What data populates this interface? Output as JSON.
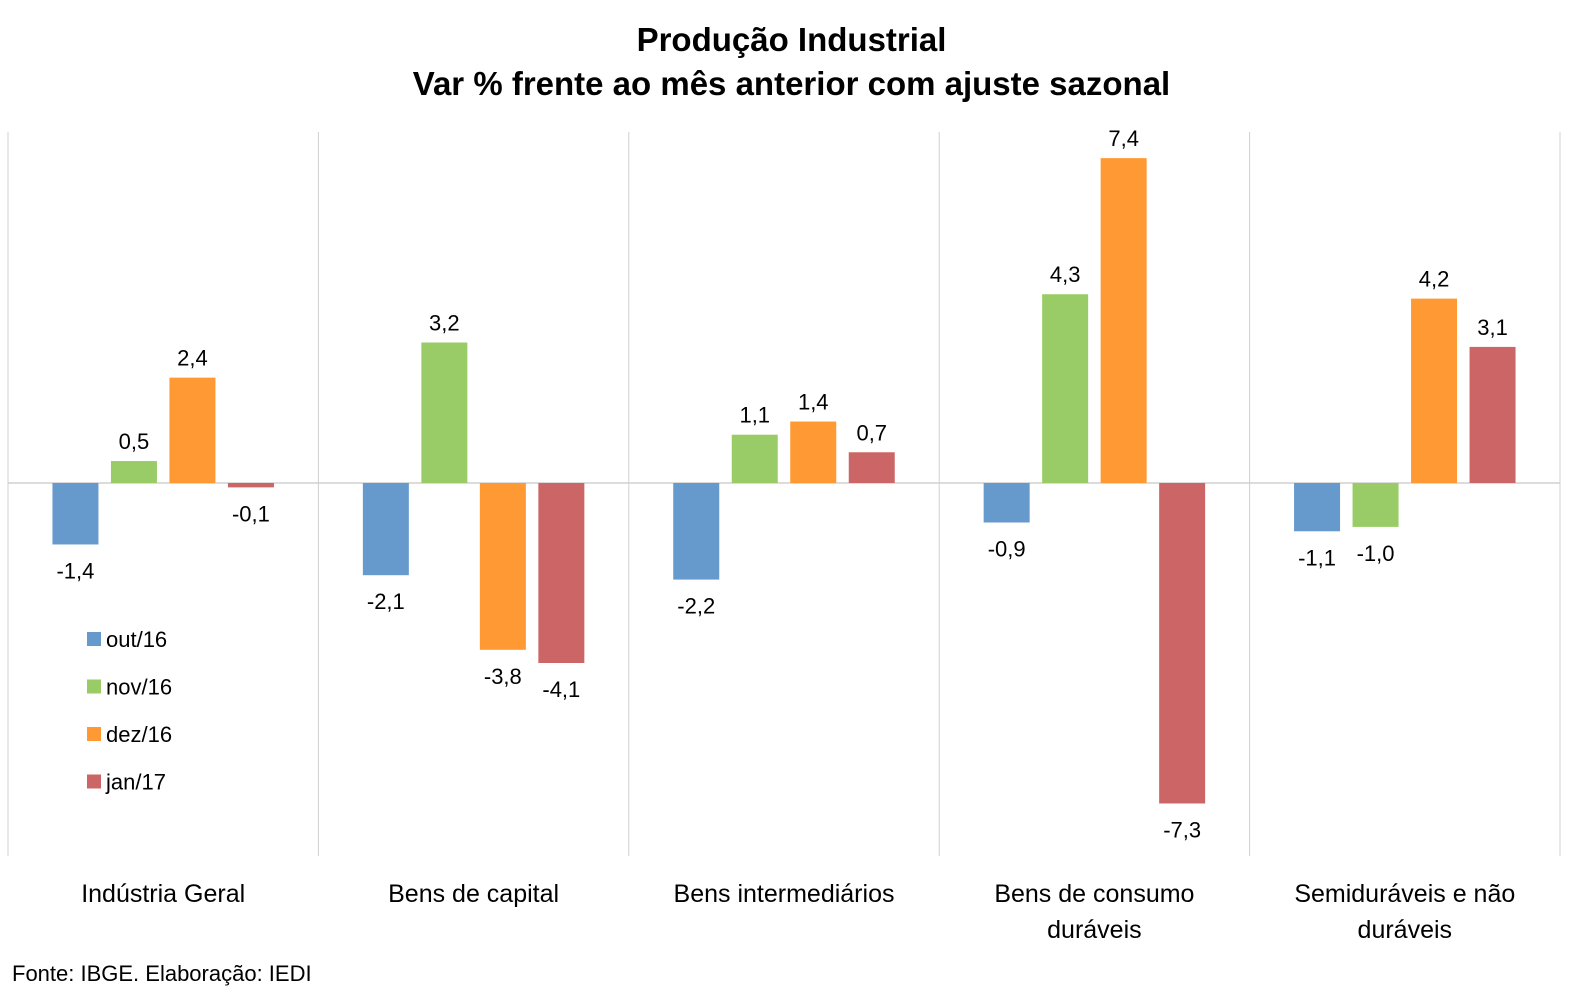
{
  "chart_data": {
    "type": "bar",
    "title": "Produção Industrial",
    "subtitle": "Var % frente ao mês anterior com ajuste sazonal",
    "categories": [
      [
        "Indústria Geral"
      ],
      [
        "Bens de capital"
      ],
      [
        "Bens intermediários"
      ],
      [
        "Bens de consumo",
        "duráveis"
      ],
      [
        "Semiduráveis e não",
        "duráveis"
      ]
    ],
    "series": [
      {
        "name": "out/16",
        "color": "#6699cc",
        "values": [
          -1.4,
          -2.1,
          -2.2,
          -0.9,
          -1.1
        ],
        "labels": [
          "-1,4",
          "-2,1",
          "-2,2",
          "-0,9",
          "-1,1"
        ]
      },
      {
        "name": "nov/16",
        "color": "#99cc66",
        "values": [
          0.5,
          3.2,
          1.1,
          4.3,
          -1.0
        ],
        "labels": [
          "0,5",
          "3,2",
          "1,1",
          "4,3",
          "-1,0"
        ]
      },
      {
        "name": "dez/16",
        "color": "#ff9933",
        "values": [
          2.4,
          -3.8,
          1.4,
          7.4,
          4.2
        ],
        "labels": [
          "2,4",
          "-3,8",
          "1,4",
          "7,4",
          "4,2"
        ]
      },
      {
        "name": "jan/17",
        "color": "#cc6666",
        "values": [
          -0.1,
          -4.1,
          0.7,
          -7.3,
          3.1
        ],
        "labels": [
          "-0,1",
          "-4,1",
          "0,7",
          "-7,3",
          "3,1"
        ]
      }
    ],
    "ylim": [
      -8.5,
      8.0
    ],
    "grid": false,
    "legend_position": "left"
  },
  "source": "Fonte: IBGE. Elaboração: IEDI"
}
